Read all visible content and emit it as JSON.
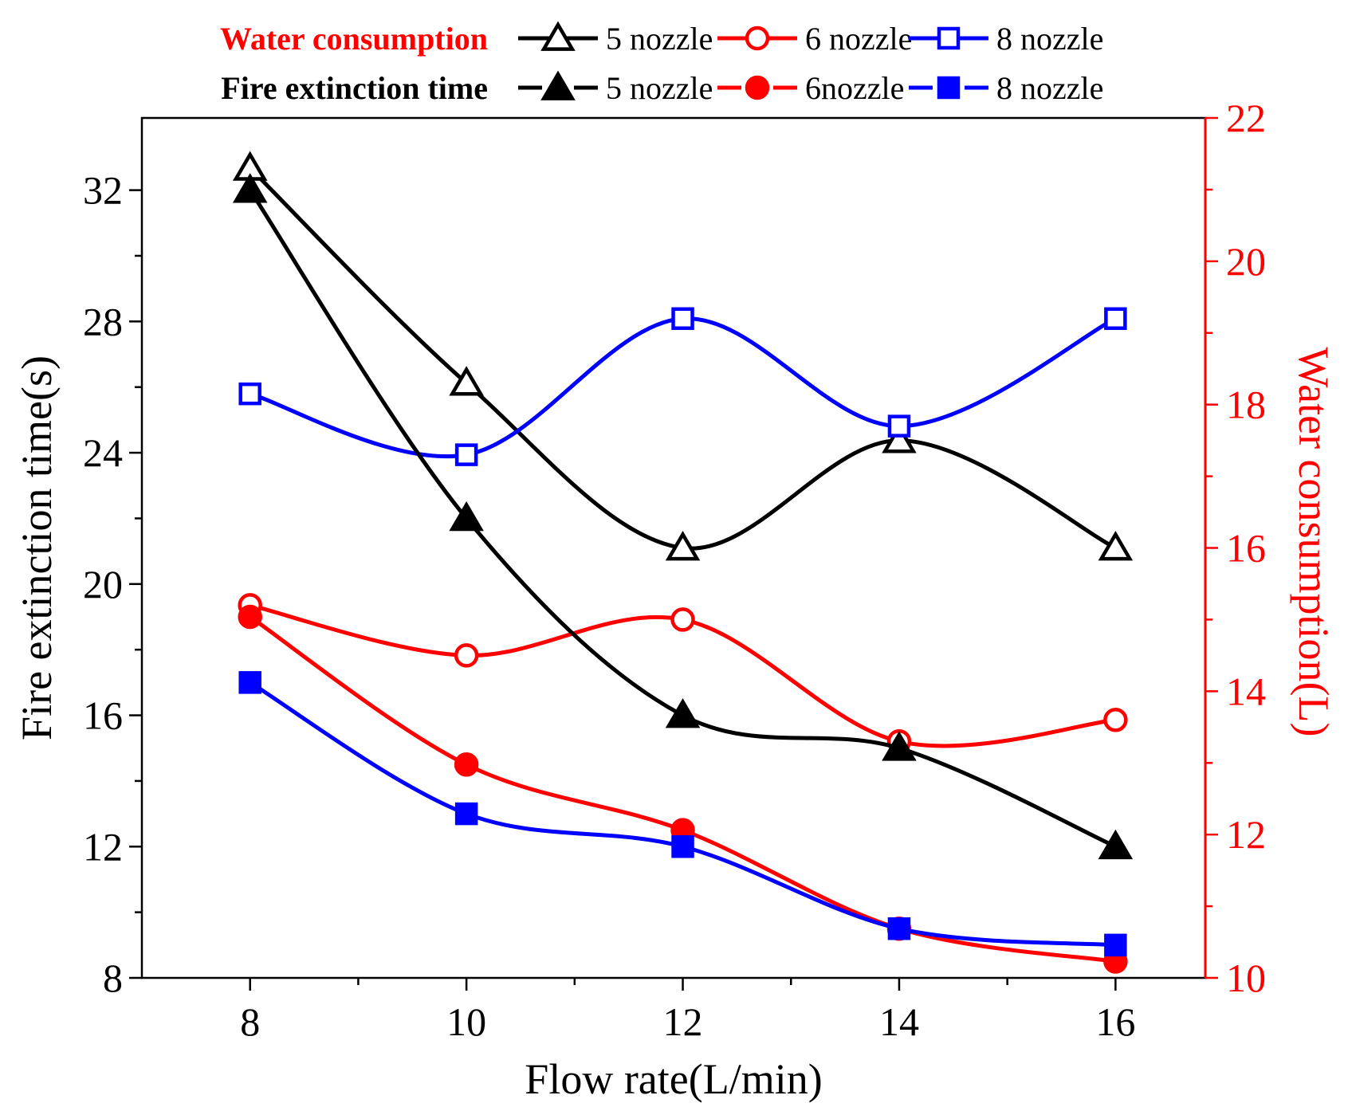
{
  "chart_data": {
    "type": "line",
    "xlabel": "Flow rate(L/min)",
    "ylabel": "Fire extinction time(s)",
    "y2label": "Water consumption(L)",
    "x": [
      8,
      10,
      12,
      14,
      16
    ],
    "xlim": [
      7,
      16.83
    ],
    "x_ticks": [
      8,
      10,
      12,
      14,
      16
    ],
    "ylim": [
      8,
      34.2
    ],
    "y_ticks": [
      8,
      12,
      16,
      20,
      24,
      28,
      32
    ],
    "y2lim": [
      10,
      22
    ],
    "y2_ticks": [
      10,
      12,
      14,
      16,
      18,
      20,
      22
    ],
    "colors": {
      "axis": "#000000",
      "right_axis": "#ff0000"
    },
    "legend": {
      "placement": "top",
      "groups": [
        {
          "title": "Water consumption",
          "title_color": "#ff0000",
          "filled": false,
          "entries": [
            {
              "label": "5 nozzle",
              "color": "#000000",
              "marker": "triangle"
            },
            {
              "label": "6 nozzle",
              "color": "#ff0000",
              "marker": "circle"
            },
            {
              "label": "8 nozzle",
              "color": "#0000ff",
              "marker": "square"
            }
          ]
        },
        {
          "title": "Fire extinction time",
          "title_color": "#000000",
          "filled": true,
          "entries": [
            {
              "label": "5 nozzle",
              "color": "#000000",
              "marker": "triangle"
            },
            {
              "label": "6nozzle",
              "color": "#ff0000",
              "marker": "circle"
            },
            {
              "label": "8 nozzle",
              "color": "#0000ff",
              "marker": "square"
            }
          ]
        }
      ]
    },
    "series": [
      {
        "name": "5 nozzle",
        "group": "Water consumption",
        "axis": "y2",
        "color": "#000000",
        "marker": "triangle",
        "filled": false,
        "values": [
          21.3,
          18.3,
          16.0,
          17.5,
          16.0
        ]
      },
      {
        "name": "6 nozzle",
        "group": "Water consumption",
        "axis": "y2",
        "color": "#ff0000",
        "marker": "circle",
        "filled": false,
        "values": [
          15.2,
          14.5,
          15.0,
          13.3,
          13.6
        ]
      },
      {
        "name": "8 nozzle",
        "group": "Water consumption",
        "axis": "y2",
        "color": "#0000ff",
        "marker": "square",
        "filled": false,
        "values": [
          18.15,
          17.3,
          19.2,
          17.7,
          19.2
        ]
      },
      {
        "name": "5 nozzle",
        "group": "Fire extinction time",
        "axis": "y",
        "color": "#000000",
        "marker": "triangle",
        "filled": true,
        "values": [
          32,
          22,
          16,
          15,
          12
        ]
      },
      {
        "name": "6nozzle",
        "group": "Fire extinction time",
        "axis": "y",
        "color": "#ff0000",
        "marker": "circle",
        "filled": true,
        "values": [
          19,
          14.5,
          12.5,
          9.5,
          8.5
        ]
      },
      {
        "name": "8 nozzle",
        "group": "Fire extinction time",
        "axis": "y",
        "color": "#0000ff",
        "marker": "square",
        "filled": true,
        "values": [
          17,
          13,
          12,
          9.5,
          9
        ]
      }
    ]
  }
}
